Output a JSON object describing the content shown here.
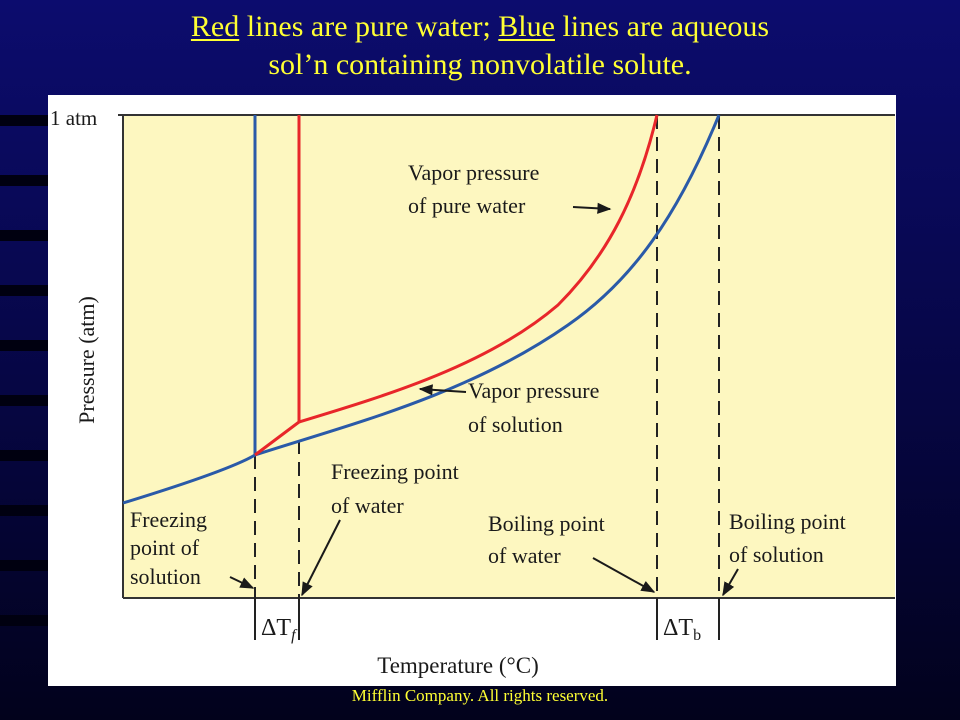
{
  "title": {
    "part1": "Red",
    "part2": " lines are pure water; ",
    "part3": "Blue",
    "part4": " lines are aqueous",
    "line2": "sol’n containing nonvolatile solute."
  },
  "diagram": {
    "y_top_label": "1 atm",
    "y_axis_label": "Pressure (atm)",
    "x_axis_label": "Temperature (°C)",
    "label_vapor_water_1": "Vapor pressure",
    "label_vapor_water_2": "of pure water",
    "label_vapor_solution_1": "Vapor pressure",
    "label_vapor_solution_2": "of solution",
    "label_fp_water_1": "Freezing point",
    "label_fp_water_2": "of water",
    "label_fp_solution_1": "Freezing",
    "label_fp_solution_2": "point of",
    "label_fp_solution_3": "solution",
    "label_bp_water_1": "Boiling point",
    "label_bp_water_2": "of water",
    "label_bp_solution_1": "Boiling point",
    "label_bp_solution_2": "of solution",
    "delta_tf": "ΔT",
    "delta_tf_sub": "f",
    "delta_tb": "ΔT",
    "delta_tb_sub": "b",
    "colors": {
      "pure_water": "#e8262a",
      "solution": "#2a5aa8",
      "plot_bg": "#fdf7c0",
      "slide_bg": "#0a0a66",
      "title_text": "#ffff33"
    }
  },
  "footer": "Mifflin Company. All rights reserved."
}
